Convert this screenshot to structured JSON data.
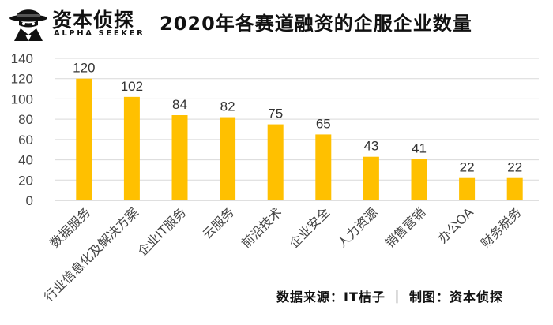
{
  "brand": {
    "name": "资本侦探",
    "subtitle": "ALPHA SEEKER",
    "logo_icon": "detective-hat-icon"
  },
  "footer": {
    "source": "数据来源：IT桔子 ｜ 制图：资本侦探"
  },
  "chart_data": {
    "type": "bar",
    "title": "2020年各赛道融资的企服企业数量",
    "categories": [
      "数据服务",
      "行业信息化及解决方案",
      "企业IT服务",
      "云服务",
      "前沿技术",
      "企业安全",
      "人力资源",
      "销售营销",
      "办公OA",
      "财务税务"
    ],
    "values": [
      120,
      102,
      84,
      82,
      75,
      65,
      43,
      41,
      22,
      22
    ],
    "ylim": [
      0,
      140
    ],
    "yticks": [
      0,
      20,
      40,
      60,
      80,
      100,
      120,
      140
    ],
    "grid": true,
    "bar_color": "#FFC000",
    "grid_color": "#d9d9d9",
    "data_labels": true
  }
}
